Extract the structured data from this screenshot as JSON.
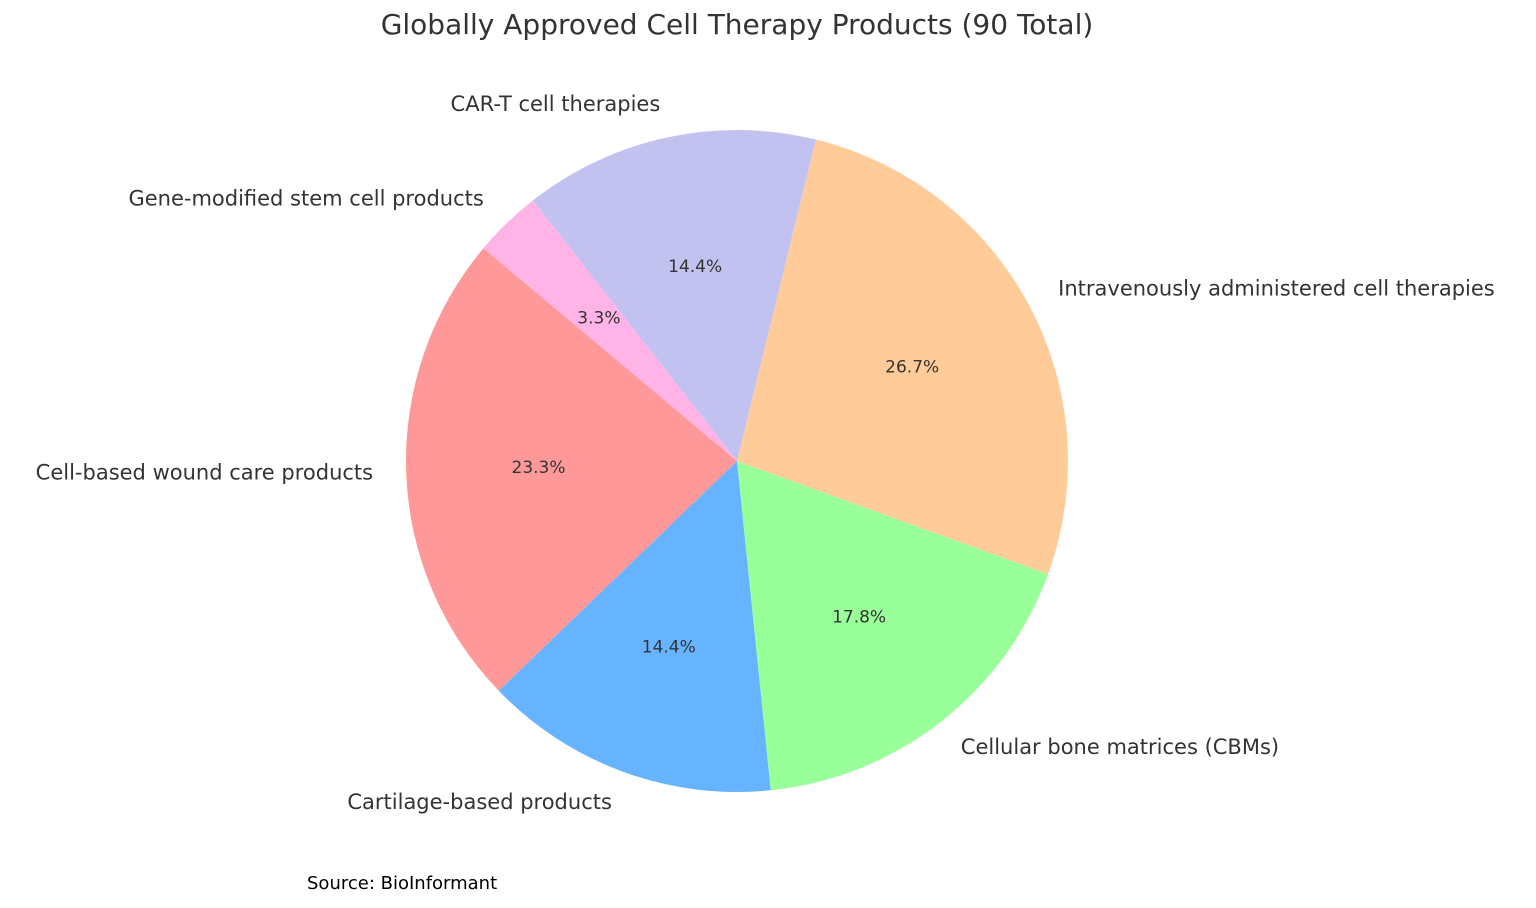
{
  "chart_data": {
    "type": "pie",
    "title": "Globally Approved Cell Therapy Products (90 Total)",
    "categories": [
      "Cell-based wound care products",
      "Cartilage-based products",
      "Cellular bone matrices (CBMs)",
      "Intravenously administered cell therapies",
      "CAR-T cell therapies",
      "Gene-modified stem cell products"
    ],
    "values": [
      23.3,
      14.4,
      17.8,
      26.7,
      14.4,
      3.3
    ],
    "value_labels": [
      "23.3%",
      "14.4%",
      "17.8%",
      "26.7%",
      "14.4%",
      "3.3%"
    ],
    "colors": [
      "#ff9999",
      "#66b3ff",
      "#99ff99",
      "#ffcc99",
      "#c2c2f0",
      "#ffb3e6"
    ],
    "source": "Source: BioInformant"
  }
}
